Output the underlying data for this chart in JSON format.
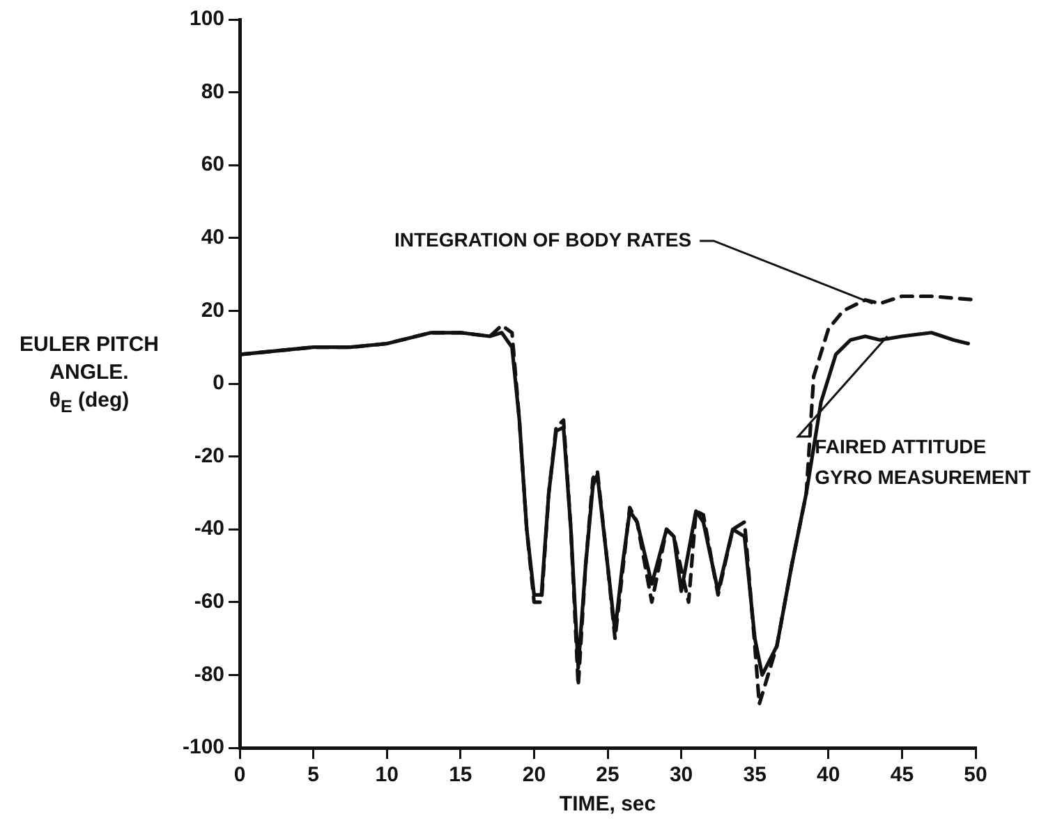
{
  "chart_data": {
    "type": "line",
    "xlabel": "TIME, sec",
    "ylabel": "EULER PITCH\nANGLE.\nθ$_{E}$ (deg)",
    "xlim": [
      0,
      50
    ],
    "ylim": [
      -100,
      100
    ],
    "xticks": [
      0,
      5,
      10,
      15,
      20,
      25,
      30,
      35,
      40,
      45,
      50
    ],
    "yticks": [
      -100,
      -80,
      -60,
      -40,
      -20,
      0,
      20,
      40,
      60,
      80,
      100
    ],
    "grid": false,
    "legend": false,
    "marker": "none",
    "series": [
      {
        "color": "#111111",
        "line_style": "solid",
        "x": [
          0,
          2.5,
          5,
          7.5,
          10,
          13,
          15,
          17,
          17.8,
          18.5,
          19,
          19.5,
          20,
          20.5,
          21,
          21.5,
          22,
          22.5,
          23,
          23.5,
          24,
          24.3,
          25,
          25.5,
          26,
          26.5,
          27,
          28,
          29,
          29.5,
          30,
          31,
          31.5,
          32.5,
          33.5,
          34.3,
          35,
          35.5,
          36.5,
          37.5,
          38.5,
          39.5,
          40.5,
          41.5,
          42.5,
          43.5,
          45,
          47,
          48.5,
          49.5
        ],
        "values": [
          8,
          9,
          10,
          10,
          11,
          14,
          14,
          13,
          14,
          10,
          -10,
          -40,
          -58,
          -58,
          -30,
          -13,
          -12,
          -40,
          -78,
          -50,
          -28,
          -25,
          -50,
          -68,
          -50,
          -35,
          -38,
          -55,
          -40,
          -42,
          -57,
          -35,
          -38,
          -57,
          -40,
          -42,
          -70,
          -80,
          -72,
          -50,
          -30,
          -5,
          8,
          12,
          13,
          12,
          13,
          14,
          12,
          11
        ]
      },
      {
        "color": "#111111",
        "line_style": "dashed",
        "x": [
          0,
          2.5,
          5,
          7.5,
          10,
          13,
          15,
          17,
          17.8,
          18.5,
          19,
          19.5,
          20,
          20.5,
          21,
          21.5,
          22,
          22.5,
          23,
          23.5,
          24,
          24.3,
          25,
          25.5,
          26,
          26.5,
          27,
          28,
          29,
          29.5,
          30.5,
          31,
          31.5,
          32.5,
          33.5,
          34.3,
          35,
          35.3,
          36.5,
          37.5,
          38.5,
          39,
          40,
          41,
          42.5,
          43.5,
          45,
          47,
          50
        ],
        "values": [
          8,
          9,
          10,
          10,
          11,
          14,
          14,
          13,
          16,
          14,
          -10,
          -40,
          -60,
          -60,
          -30,
          -12,
          -10,
          -40,
          -83,
          -50,
          -26,
          -24,
          -50,
          -70,
          -52,
          -34,
          -38,
          -60,
          -40,
          -42,
          -60,
          -35,
          -36,
          -58,
          -40,
          -38,
          -72,
          -88,
          -72,
          -50,
          -30,
          2,
          15,
          20,
          23,
          22,
          24,
          24,
          23
        ]
      }
    ],
    "annotations": [
      {
        "text": "INTEGRATION OF BODY RATES",
        "x": 43,
        "y": 22
      },
      {
        "text": "FAIRED ATTITUDE\nGYRO MEASUREMENT",
        "x": 44,
        "y": 13
      }
    ]
  }
}
